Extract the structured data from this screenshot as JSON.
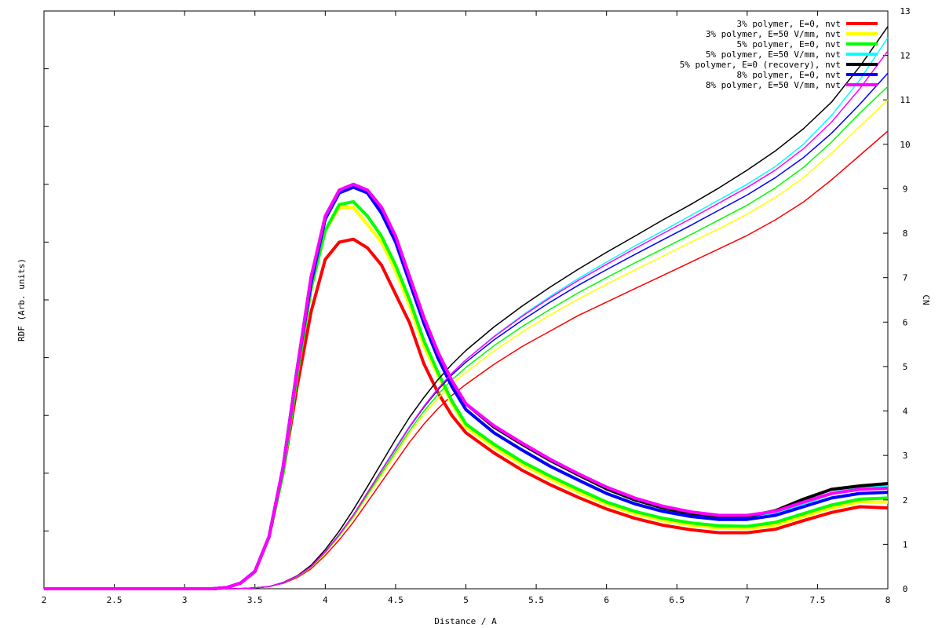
{
  "chart_data": {
    "type": "line",
    "title": "",
    "xlabel": "Distance / A",
    "ylabel_left": "RDF (Arb. units)",
    "ylabel_right": "CN",
    "xlim": [
      2,
      8
    ],
    "x_ticks": [
      "2",
      "2.5",
      "3",
      "3.5",
      "4",
      "4.5",
      "5",
      "5.5",
      "6",
      "6.5",
      "7",
      "7.5",
      "8"
    ],
    "rdf_ylim": [
      0,
      1
    ],
    "rdf_tick_labels_shown": false,
    "cn_ylim": [
      0,
      13
    ],
    "cn_ticks": [
      "0",
      "1",
      "2",
      "3",
      "4",
      "5",
      "6",
      "7",
      "8",
      "9",
      "10",
      "11",
      "12",
      "13"
    ],
    "legend_position": "top-right",
    "grid": false,
    "x": [
      2.0,
      3.2,
      3.3,
      3.4,
      3.5,
      3.6,
      3.7,
      3.8,
      3.9,
      4.0,
      4.1,
      4.2,
      4.3,
      4.4,
      4.5,
      4.6,
      4.7,
      4.8,
      4.9,
      5.0,
      5.2,
      5.4,
      5.6,
      5.8,
      6.0,
      6.2,
      6.4,
      6.6,
      6.8,
      7.0,
      7.2,
      7.4,
      7.6,
      7.8,
      8.0
    ],
    "series": [
      {
        "name": "3% polymer, E=0, nvt",
        "color": "#ff0000",
        "rdf": [
          0,
          0,
          0.002,
          0.01,
          0.03,
          0.09,
          0.2,
          0.35,
          0.48,
          0.57,
          0.6,
          0.605,
          0.59,
          0.56,
          0.51,
          0.46,
          0.39,
          0.34,
          0.3,
          0.27,
          0.235,
          0.205,
          0.18,
          0.158,
          0.138,
          0.122,
          0.11,
          0.102,
          0.097,
          0.097,
          0.103,
          0.118,
          0.132,
          0.142,
          0.14
        ],
        "cn": [
          0,
          0,
          0,
          0.005,
          0.02,
          0.05,
          0.12,
          0.25,
          0.45,
          0.75,
          1.1,
          1.5,
          1.95,
          2.4,
          2.85,
          3.3,
          3.7,
          4.05,
          4.35,
          4.6,
          5.05,
          5.45,
          5.8,
          6.15,
          6.45,
          6.75,
          7.05,
          7.35,
          7.65,
          7.95,
          8.3,
          8.7,
          9.2,
          9.75,
          10.3
        ]
      },
      {
        "name": "3% polymer, E=50 V/mm, nvt",
        "color": "#ffff00",
        "rdf": [
          0,
          0,
          0.002,
          0.01,
          0.03,
          0.09,
          0.2,
          0.37,
          0.52,
          0.62,
          0.66,
          0.66,
          0.63,
          0.6,
          0.55,
          0.49,
          0.42,
          0.37,
          0.32,
          0.28,
          0.245,
          0.215,
          0.19,
          0.167,
          0.146,
          0.13,
          0.118,
          0.11,
          0.105,
          0.104,
          0.11,
          0.125,
          0.14,
          0.15,
          0.15
        ],
        "cn": [
          0,
          0,
          0,
          0.005,
          0.02,
          0.05,
          0.13,
          0.27,
          0.48,
          0.8,
          1.18,
          1.6,
          2.08,
          2.55,
          3.03,
          3.5,
          3.92,
          4.28,
          4.6,
          4.87,
          5.35,
          5.78,
          6.16,
          6.52,
          6.85,
          7.17,
          7.48,
          7.8,
          8.1,
          8.43,
          8.8,
          9.25,
          9.8,
          10.4,
          11.0
        ]
      },
      {
        "name": "5% polymer, E=0, nvt",
        "color": "#00ff00",
        "rdf": [
          0,
          0,
          0.002,
          0.01,
          0.03,
          0.09,
          0.2,
          0.37,
          0.52,
          0.62,
          0.665,
          0.67,
          0.645,
          0.61,
          0.56,
          0.5,
          0.43,
          0.375,
          0.325,
          0.285,
          0.25,
          0.22,
          0.195,
          0.172,
          0.15,
          0.134,
          0.122,
          0.114,
          0.109,
          0.108,
          0.115,
          0.13,
          0.145,
          0.155,
          0.157
        ],
        "cn": [
          0,
          0,
          0,
          0.005,
          0.02,
          0.05,
          0.13,
          0.27,
          0.49,
          0.82,
          1.2,
          1.63,
          2.12,
          2.6,
          3.08,
          3.56,
          3.99,
          4.37,
          4.7,
          4.98,
          5.47,
          5.9,
          6.29,
          6.66,
          7.0,
          7.33,
          7.65,
          7.97,
          8.3,
          8.63,
          9.02,
          9.48,
          10.05,
          10.7,
          11.3
        ]
      },
      {
        "name": "5% polymer, E=50 V/mm, nvt",
        "color": "#00ffff",
        "rdf": [
          0,
          0,
          0.002,
          0.01,
          0.03,
          0.09,
          0.21,
          0.38,
          0.54,
          0.64,
          0.69,
          0.7,
          0.69,
          0.66,
          0.61,
          0.54,
          0.47,
          0.41,
          0.36,
          0.32,
          0.28,
          0.25,
          0.222,
          0.197,
          0.173,
          0.154,
          0.14,
          0.13,
          0.124,
          0.123,
          0.13,
          0.147,
          0.165,
          0.175,
          0.178
        ],
        "cn": [
          0,
          0,
          0,
          0.005,
          0.02,
          0.05,
          0.13,
          0.28,
          0.5,
          0.83,
          1.22,
          1.66,
          2.17,
          2.67,
          3.17,
          3.66,
          4.1,
          4.5,
          4.85,
          5.15,
          5.68,
          6.15,
          6.58,
          6.98,
          7.35,
          7.71,
          8.05,
          8.4,
          8.75,
          9.1,
          9.5,
          10.0,
          10.65,
          11.45,
          12.4
        ]
      },
      {
        "name": "5% polymer, E=0 (recovery), nvt",
        "color": "#000000",
        "rdf": [
          0,
          0,
          0.002,
          0.01,
          0.03,
          0.09,
          0.21,
          0.38,
          0.54,
          0.64,
          0.69,
          0.7,
          0.69,
          0.66,
          0.61,
          0.54,
          0.47,
          0.41,
          0.36,
          0.32,
          0.28,
          0.25,
          0.222,
          0.197,
          0.173,
          0.154,
          0.14,
          0.13,
          0.124,
          0.125,
          0.135,
          0.155,
          0.172,
          0.178,
          0.182
        ],
        "cn": [
          0,
          0,
          0,
          0.005,
          0.02,
          0.05,
          0.14,
          0.29,
          0.53,
          0.88,
          1.3,
          1.78,
          2.3,
          2.83,
          3.36,
          3.86,
          4.3,
          4.7,
          5.05,
          5.36,
          5.89,
          6.36,
          6.79,
          7.19,
          7.57,
          7.93,
          8.3,
          8.65,
          9.02,
          9.42,
          9.85,
          10.35,
          10.95,
          11.75,
          12.65
        ]
      },
      {
        "name": "8% polymer, E=0, nvt",
        "color": "#0000ff",
        "rdf": [
          0,
          0,
          0.002,
          0.01,
          0.03,
          0.09,
          0.21,
          0.38,
          0.53,
          0.64,
          0.685,
          0.695,
          0.685,
          0.65,
          0.6,
          0.53,
          0.46,
          0.4,
          0.35,
          0.31,
          0.27,
          0.24,
          0.212,
          0.188,
          0.165,
          0.147,
          0.134,
          0.125,
          0.12,
          0.12,
          0.127,
          0.142,
          0.157,
          0.165,
          0.167
        ],
        "cn": [
          0,
          0,
          0,
          0.005,
          0.02,
          0.05,
          0.13,
          0.28,
          0.5,
          0.83,
          1.22,
          1.66,
          2.16,
          2.66,
          3.15,
          3.64,
          4.08,
          4.47,
          4.81,
          5.1,
          5.6,
          6.04,
          6.45,
          6.83,
          7.18,
          7.52,
          7.85,
          8.18,
          8.52,
          8.86,
          9.25,
          9.7,
          10.25,
          10.9,
          11.6
        ]
      },
      {
        "name": "8% polymer, E=50 V/mm, nvt",
        "color": "#ff00ff",
        "rdf": [
          0,
          0,
          0.002,
          0.01,
          0.03,
          0.09,
          0.21,
          0.38,
          0.54,
          0.645,
          0.69,
          0.7,
          0.69,
          0.66,
          0.61,
          0.54,
          0.47,
          0.41,
          0.36,
          0.32,
          0.282,
          0.252,
          0.224,
          0.199,
          0.176,
          0.157,
          0.143,
          0.133,
          0.127,
          0.127,
          0.134,
          0.15,
          0.165,
          0.172,
          0.174
        ],
        "cn": [
          0,
          0,
          0,
          0.005,
          0.02,
          0.05,
          0.13,
          0.28,
          0.5,
          0.83,
          1.22,
          1.66,
          2.16,
          2.66,
          3.16,
          3.65,
          4.1,
          4.5,
          4.85,
          5.15,
          5.67,
          6.13,
          6.55,
          6.94,
          7.3,
          7.65,
          7.99,
          8.33,
          8.68,
          9.03,
          9.42,
          9.9,
          10.5,
          11.25,
          12.1
        ]
      }
    ]
  }
}
